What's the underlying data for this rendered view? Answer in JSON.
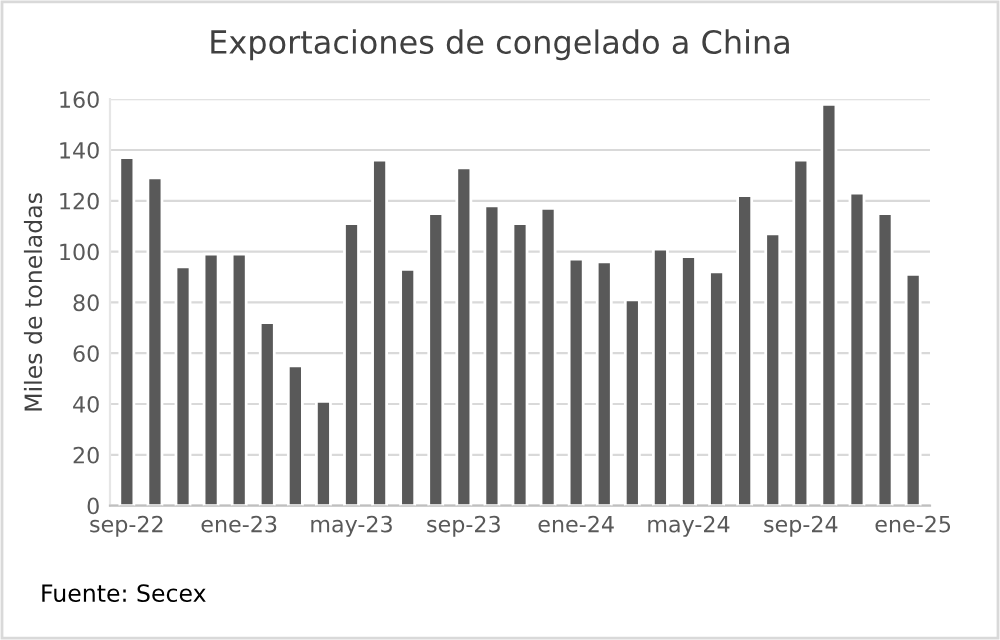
{
  "chart_data": {
    "type": "bar",
    "title": "Exportaciones de congelado a China",
    "ylabel": "Miles de toneladas",
    "categories": [
      "sep-22",
      null,
      null,
      null,
      "ene-23",
      null,
      null,
      null,
      "may-23",
      null,
      null,
      null,
      "sep-23",
      null,
      null,
      null,
      "ene-24",
      null,
      null,
      null,
      "may-24",
      null,
      null,
      null,
      "sep-24",
      null,
      null,
      null,
      "ene-25"
    ],
    "values": [
      137,
      129,
      94,
      99,
      99,
      72,
      55,
      41,
      111,
      136,
      93,
      115,
      133,
      118,
      111,
      117,
      97,
      96,
      81,
      101,
      98,
      92,
      122,
      107,
      136,
      158,
      123,
      115,
      91
    ],
    "color": "#595959",
    "ylim": [
      0,
      160
    ],
    "yticks": [
      0,
      20,
      40,
      60,
      80,
      100,
      120,
      140,
      160
    ],
    "grid": "y",
    "annotations": [
      "Fuente: Secex"
    ]
  }
}
